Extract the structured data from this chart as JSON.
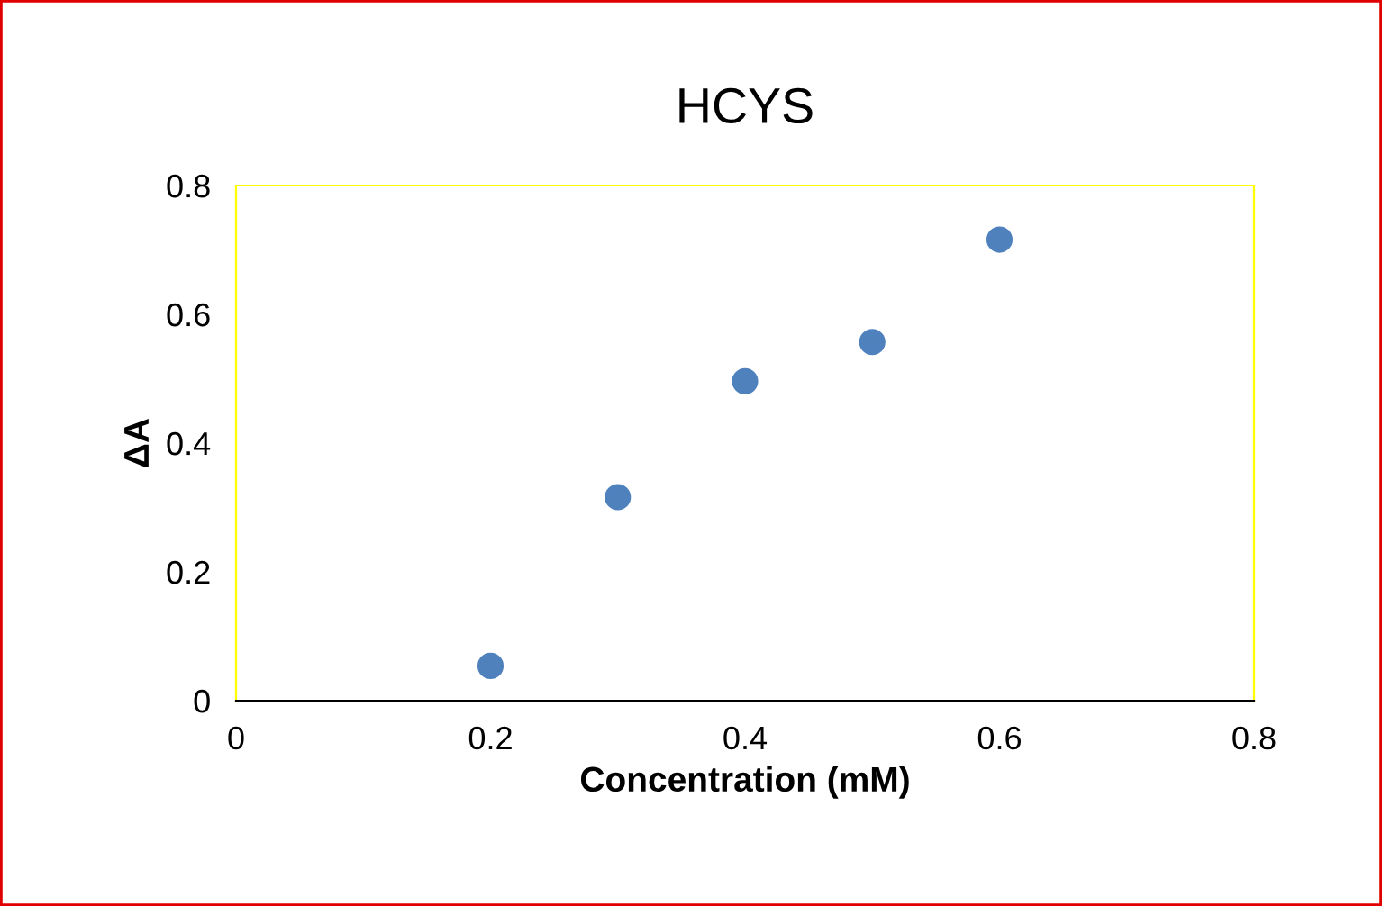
{
  "chart_data": {
    "type": "scatter",
    "title": "HCYS",
    "xlabel": "Concentration (mM)",
    "ylabel": "ΔA",
    "x": [
      0.2,
      0.3,
      0.4,
      0.5,
      0.6
    ],
    "series": [
      {
        "color": "#4f81bd",
        "values": [
          0.054,
          0.316,
          0.496,
          0.557,
          0.716
        ]
      }
    ],
    "xlim": [
      0,
      0.8
    ],
    "xticks": [
      {
        "value": 0,
        "label": "0"
      },
      0.2,
      0.4,
      0.6,
      0.8
    ],
    "ylim": [
      0,
      0.8
    ],
    "yticks": [
      {
        "value": 0,
        "label": "0"
      },
      0.2,
      0.4,
      0.6,
      0.8
    ],
    "grid": false,
    "marker": "circle",
    "legend": false
  }
}
